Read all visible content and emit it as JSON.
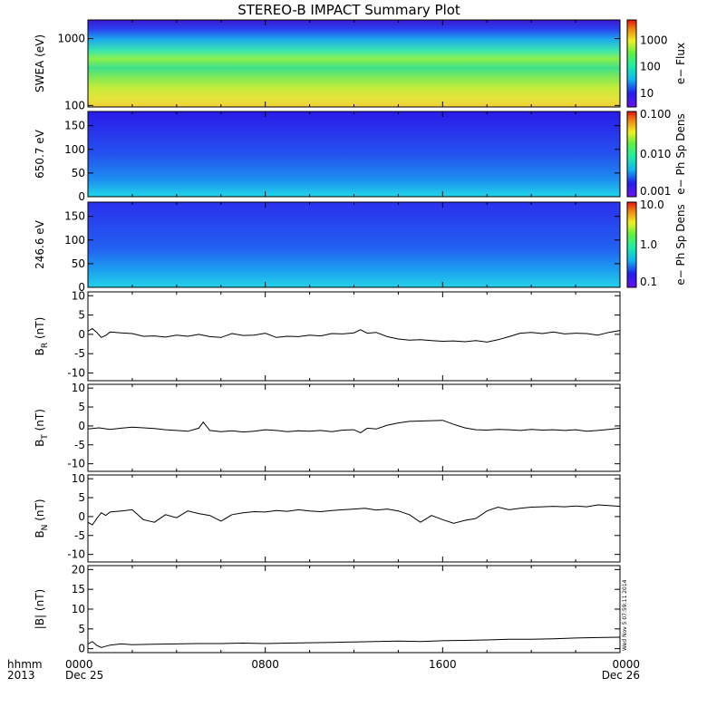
{
  "title": "STEREO-B IMPACT Summary Plot",
  "stamp": "Wed Nov  5 07:59:11 2014",
  "colors": {
    "axis": "#000000",
    "trace": "#000000",
    "background": "#ffffff"
  },
  "x_axis": {
    "left_labels": [
      "hhmm",
      "2013"
    ],
    "ticks": [
      {
        "value": 0,
        "labels": [
          "0000",
          "Dec 25"
        ]
      },
      {
        "value": 8,
        "labels": [
          "0800",
          ""
        ]
      },
      {
        "value": 16,
        "labels": [
          "1600",
          ""
        ]
      },
      {
        "value": 24,
        "labels": [
          "0000",
          "Dec 26"
        ]
      }
    ],
    "range_hours": [
      0,
      24
    ]
  },
  "chart_data": [
    {
      "type": "heatmap",
      "ylabel": "SWEA (eV)",
      "yscale": "log",
      "ylim": [
        95,
        1900
      ],
      "yticks": [
        {
          "v": 100,
          "t": "100"
        },
        {
          "v": 1000,
          "t": "1000"
        }
      ],
      "colorbar": {
        "label": "e− Flux",
        "scale": "log",
        "range": [
          3,
          6000
        ],
        "ticks": [
          {
            "v": 10,
            "t": "10"
          },
          {
            "v": 100,
            "t": "100"
          },
          {
            "v": 1000,
            "t": "1000"
          }
        ]
      },
      "description_values": "flux decreasing with energy; uniform in time"
    },
    {
      "type": "heatmap",
      "ylabel": "650.7 eV",
      "ylim": [
        0,
        180
      ],
      "yticks": [
        {
          "v": 0,
          "t": "0"
        },
        {
          "v": 50,
          "t": "50"
        },
        {
          "v": 100,
          "t": "100"
        },
        {
          "v": 150,
          "t": "150"
        }
      ],
      "colorbar": {
        "label": "e− Ph Sp Dens",
        "scale": "log",
        "range": [
          0.001,
          0.1
        ],
        "ticks": [
          {
            "v": 0.001,
            "t": "0.001"
          },
          {
            "v": 0.01,
            "t": "0.010"
          },
          {
            "v": 0.1,
            "t": "0.100"
          }
        ]
      }
    },
    {
      "type": "heatmap",
      "ylabel": "246.6 eV",
      "ylim": [
        0,
        180
      ],
      "yticks": [
        {
          "v": 0,
          "t": "0"
        },
        {
          "v": 50,
          "t": "50"
        },
        {
          "v": 100,
          "t": "100"
        },
        {
          "v": 150,
          "t": "150"
        }
      ],
      "colorbar": {
        "label": "e− Ph Sp Dens",
        "scale": "log",
        "range": [
          0.1,
          10
        ],
        "ticks": [
          {
            "v": 0.1,
            "t": "0.1"
          },
          {
            "v": 1,
            "t": "1.0"
          },
          {
            "v": 10,
            "t": "10.0"
          }
        ]
      }
    },
    {
      "type": "line",
      "ylabel": "B_R (nT)",
      "ylabel_main": "B",
      "ylabel_sub": "R",
      "ylabel_unit": " (nT)",
      "ylim": [
        -12,
        11
      ],
      "yticks": [
        -10,
        -5,
        0,
        5,
        10
      ],
      "x": [
        0,
        0.2,
        0.4,
        0.6,
        0.8,
        1,
        1.5,
        2,
        2.5,
        3,
        3.5,
        4,
        4.5,
        5,
        5.5,
        6,
        6.5,
        7,
        7.5,
        8,
        8.5,
        9,
        9.5,
        10,
        10.5,
        11,
        11.5,
        12,
        12.3,
        12.6,
        13,
        13.5,
        14,
        14.5,
        15,
        15.5,
        16,
        16.5,
        17,
        17.5,
        18,
        18.5,
        19,
        19.5,
        20,
        20.5,
        21,
        21.5,
        22,
        22.5,
        23,
        23.5,
        24
      ],
      "values": [
        0.8,
        1.5,
        0.5,
        -0.8,
        -0.3,
        0.6,
        0.4,
        0.2,
        -0.5,
        -0.4,
        -0.7,
        -0.2,
        -0.5,
        0,
        -0.6,
        -0.8,
        0.2,
        -0.3,
        -0.2,
        0.3,
        -0.8,
        -0.5,
        -0.6,
        -0.2,
        -0.4,
        0.2,
        0.1,
        0.4,
        1.2,
        0.3,
        0.5,
        -0.6,
        -1.2,
        -1.5,
        -1.4,
        -1.6,
        -1.8,
        -1.7,
        -1.9,
        -1.6,
        -2.0,
        -1.4,
        -0.6,
        0.3,
        0.5,
        0.2,
        0.6,
        0.1,
        0.3,
        0.2,
        -0.2,
        0.5,
        1.0
      ]
    },
    {
      "type": "line",
      "ylabel": "B_T (nT)",
      "ylabel_main": "B",
      "ylabel_sub": "T",
      "ylabel_unit": " (nT)",
      "ylim": [
        -12,
        11
      ],
      "yticks": [
        -10,
        -5,
        0,
        5,
        10
      ],
      "x": [
        0,
        0.5,
        1,
        1.5,
        2,
        2.5,
        3,
        3.5,
        4,
        4.5,
        5,
        5.2,
        5.5,
        6,
        6.5,
        7,
        7.5,
        8,
        8.5,
        9,
        9.5,
        10,
        10.5,
        11,
        11.5,
        12,
        12.3,
        12.6,
        13,
        13.5,
        14,
        14.5,
        15,
        15.5,
        16,
        16.5,
        17,
        17.5,
        18,
        18.5,
        19,
        19.5,
        20,
        20.5,
        21,
        21.5,
        22,
        22.5,
        23,
        23.5,
        24
      ],
      "values": [
        -0.8,
        -0.5,
        -0.9,
        -0.6,
        -0.3,
        -0.5,
        -0.7,
        -1.0,
        -1.2,
        -1.4,
        -0.6,
        1.0,
        -1.2,
        -1.5,
        -1.3,
        -1.6,
        -1.4,
        -1.0,
        -1.2,
        -1.5,
        -1.3,
        -1.4,
        -1.2,
        -1.5,
        -1.1,
        -1.0,
        -1.8,
        -0.6,
        -0.8,
        0.2,
        0.8,
        1.2,
        1.3,
        1.4,
        1.5,
        0.4,
        -0.5,
        -1.0,
        -1.1,
        -0.9,
        -1.0,
        -1.2,
        -0.9,
        -1.1,
        -1.0,
        -1.2,
        -1.0,
        -1.4,
        -1.2,
        -0.9,
        -0.6
      ]
    },
    {
      "type": "line",
      "ylabel": "B_N (nT)",
      "ylabel_main": "B",
      "ylabel_sub": "N",
      "ylabel_unit": " (nT)",
      "ylim": [
        -12,
        11
      ],
      "yticks": [
        -10,
        -5,
        0,
        5,
        10
      ],
      "x": [
        0,
        0.2,
        0.4,
        0.6,
        0.8,
        1,
        1.5,
        2,
        2.5,
        3,
        3.5,
        4,
        4.5,
        5,
        5.5,
        6,
        6.5,
        7,
        7.5,
        8,
        8.5,
        9,
        9.5,
        10,
        10.5,
        11,
        11.5,
        12,
        12.5,
        13,
        13.5,
        14,
        14.5,
        15,
        15.5,
        16,
        16.5,
        17,
        17.5,
        18,
        18.5,
        19,
        19.5,
        20,
        20.5,
        21,
        21.5,
        22,
        22.5,
        23,
        23.5,
        24
      ],
      "values": [
        -1.5,
        -2.2,
        -0.5,
        1.0,
        0.3,
        1.2,
        1.5,
        1.8,
        -0.8,
        -1.5,
        0.5,
        -0.3,
        1.5,
        0.8,
        0.3,
        -1.2,
        0.5,
        1.0,
        1.3,
        1.2,
        1.6,
        1.4,
        1.8,
        1.5,
        1.3,
        1.6,
        1.8,
        2.0,
        2.2,
        1.7,
        2.0,
        1.5,
        0.5,
        -1.5,
        0.3,
        -0.8,
        -1.8,
        -1.0,
        -0.5,
        1.5,
        2.5,
        1.8,
        2.2,
        2.5,
        2.6,
        2.7,
        2.6,
        2.8,
        2.6,
        3.1,
        2.9,
        2.7
      ]
    },
    {
      "type": "line",
      "ylabel": "|B| (nT)",
      "ylim": [
        -1,
        21
      ],
      "yticks": [
        0,
        5,
        10,
        15,
        20
      ],
      "x": [
        0,
        0.2,
        0.4,
        0.6,
        1,
        1.5,
        2,
        3,
        4,
        5,
        6,
        7,
        8,
        9,
        10,
        11,
        12,
        13,
        14,
        15,
        16,
        17,
        18,
        19,
        20,
        21,
        22,
        23,
        24
      ],
      "values": [
        1.2,
        1.8,
        0.8,
        0.3,
        0.9,
        1.2,
        1.0,
        1.1,
        1.2,
        1.3,
        1.3,
        1.4,
        1.3,
        1.4,
        1.5,
        1.6,
        1.7,
        1.8,
        1.9,
        1.8,
        2.0,
        2.1,
        2.2,
        2.4,
        2.4,
        2.5,
        2.7,
        2.8,
        2.9
      ]
    }
  ]
}
